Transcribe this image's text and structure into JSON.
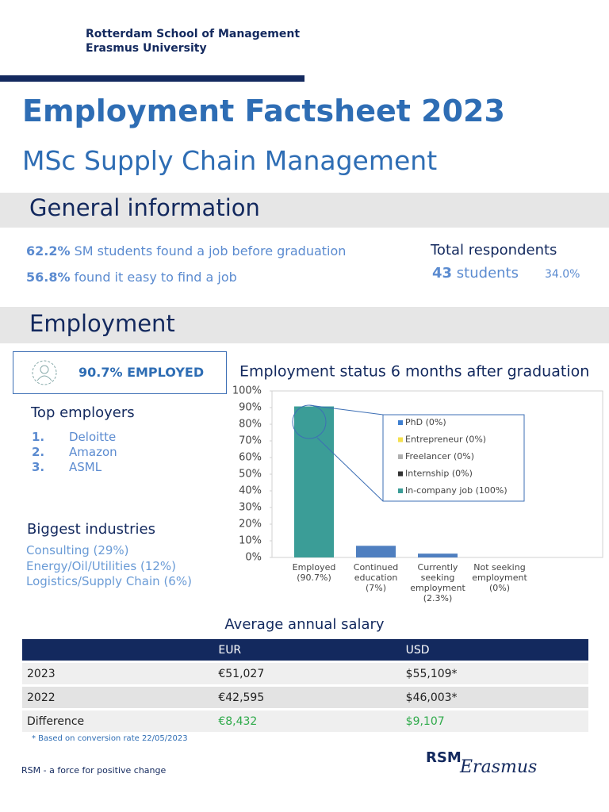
{
  "header": {
    "org_line1": "Rotterdam School of Management",
    "org_line2": "Erasmus University"
  },
  "title": "Employment Factsheet 2023",
  "subtitle": "MSc Supply Chain Management",
  "general": {
    "heading": "General information",
    "stats": [
      {
        "value": "62.2%",
        "text": "SM students found a job before graduation"
      },
      {
        "value": "56.8%",
        "text": "found it easy to find a job"
      }
    ],
    "respondents_label": "Total respondents",
    "respondents_count": "43",
    "respondents_unit": "students",
    "respondents_rate": "34.0%"
  },
  "employment": {
    "heading": "Employment",
    "employed_badge": "90.7% EMPLOYED",
    "top_employers_heading": "Top employers",
    "top_employers": [
      {
        "rank": "1.",
        "name": "Deloitte"
      },
      {
        "rank": "2.",
        "name": "Amazon"
      },
      {
        "rank": "3.",
        "name": "ASML"
      }
    ],
    "industries_heading": "Biggest industries",
    "industries": [
      "Consulting (29%)",
      "Energy/Oil/Utilities (12%)",
      "Logistics/Supply Chain (6%)"
    ]
  },
  "chart_data": {
    "type": "bar",
    "title": "Employment status 6 months after graduation",
    "categories": [
      "Employed (90.7%)",
      "Continued education (7%)",
      "Currently seeking employment (2.3%)",
      "Not seeking employment (0%)"
    ],
    "values": [
      90.7,
      7,
      2.3,
      0
    ],
    "colors": [
      "#3b9d97",
      "#4f7fc0",
      "#4f7fc0",
      "#4f7fc0"
    ],
    "ylim": [
      0,
      100
    ],
    "yticks": [
      {
        "value": 0,
        "label": "0%"
      },
      {
        "value": 10,
        "label": "10%"
      },
      {
        "value": 20,
        "label": "20%"
      },
      {
        "value": 30,
        "label": "30%"
      },
      {
        "value": 40,
        "label": "40%"
      },
      {
        "value": 50,
        "label": "50%"
      },
      {
        "value": 60,
        "label": "60%"
      },
      {
        "value": 70,
        "label": "70%"
      },
      {
        "value": 80,
        "label": "80%"
      },
      {
        "value": 90,
        "label": "90%"
      },
      {
        "value": 100,
        "label": "100%"
      }
    ],
    "grid": false,
    "inset": [
      {
        "label": "PhD (0%)",
        "color": "#3f7fd0"
      },
      {
        "label": "Entrepreneur (0%)",
        "color": "#f4e04d"
      },
      {
        "label": "Freelancer (0%)",
        "color": "#b0b0b0"
      },
      {
        "label": "Internship (0%)",
        "color": "#333333"
      },
      {
        "label": "In-company job (100%)",
        "color": "#3b9d97"
      }
    ]
  },
  "salary": {
    "heading": "Average annual salary",
    "columns": [
      "EUR",
      "USD"
    ],
    "rows": [
      [
        "2023",
        "€51,027",
        "$55,109*"
      ],
      [
        "2022",
        "€42,595",
        "$46,003*"
      ],
      [
        "Difference",
        "€8,432",
        "$9,107"
      ]
    ],
    "note": "* Based on conversion rate 22/05/2023"
  },
  "footer": {
    "tagline": "RSM - a force for positive change",
    "logo": "RSM",
    "logo_script": "Erasmus"
  }
}
